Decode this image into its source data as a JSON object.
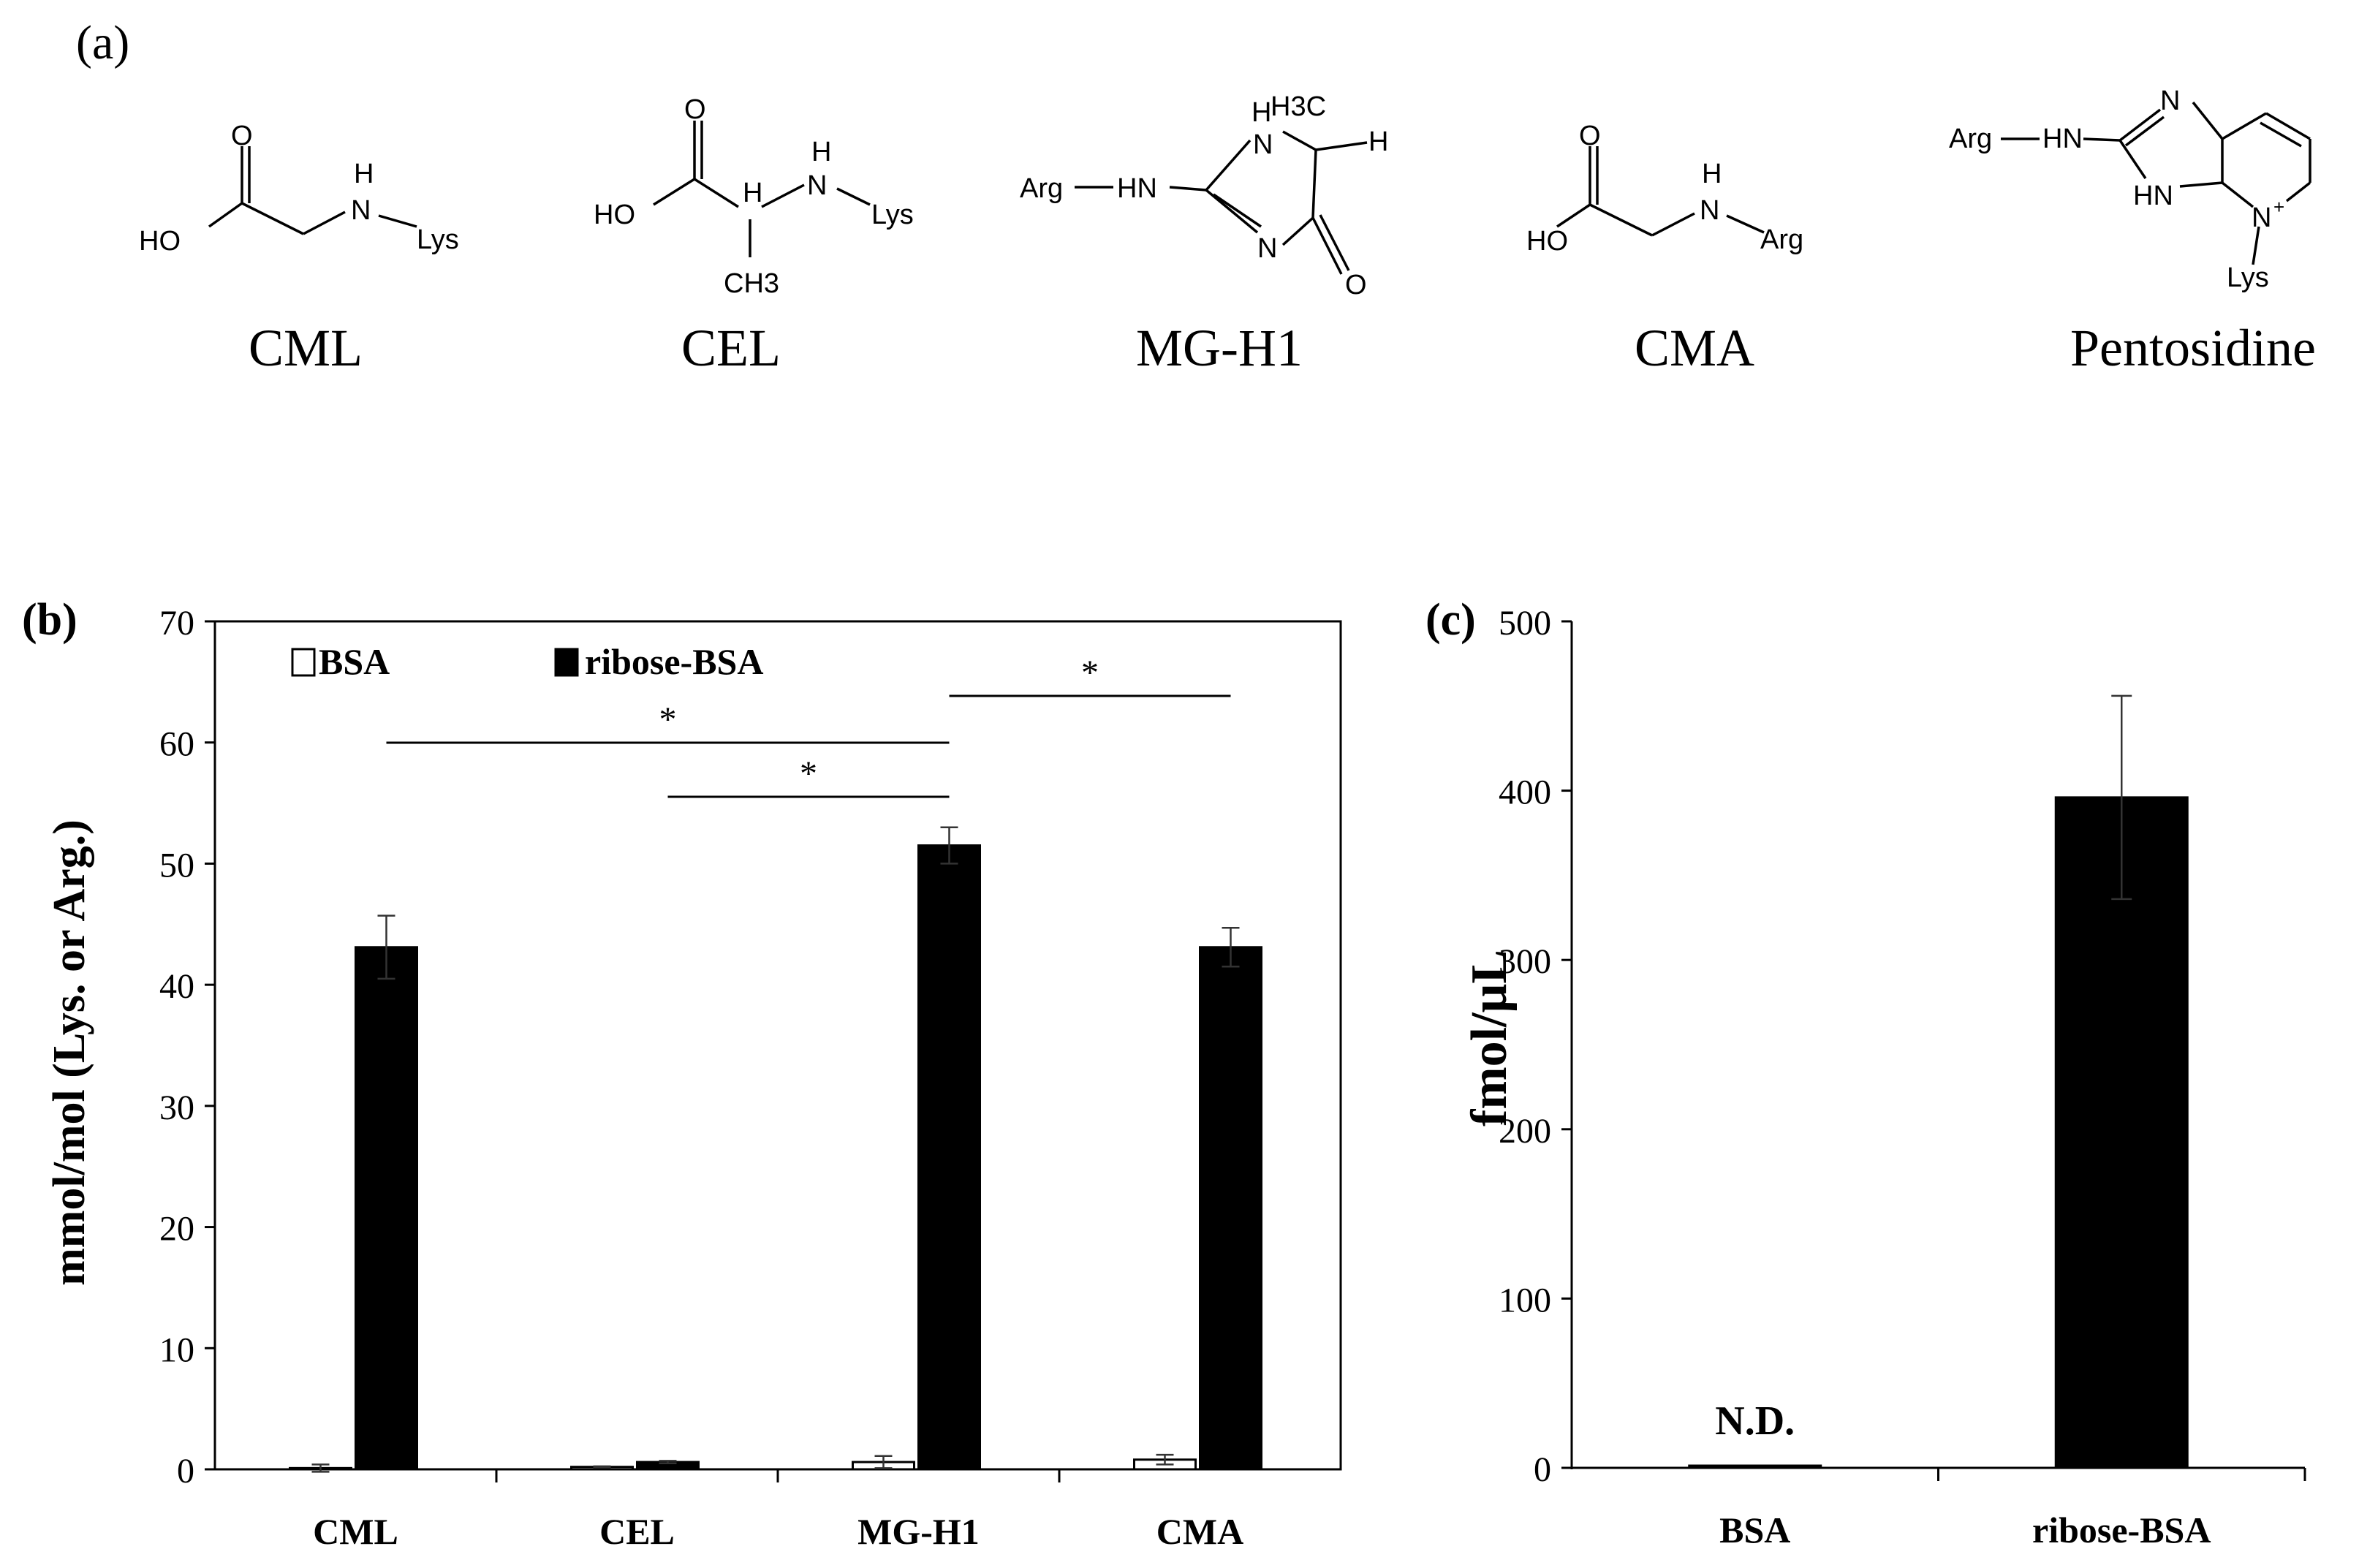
{
  "panels": {
    "a": {
      "label": "(a)"
    },
    "b": {
      "label": "(b)"
    },
    "c": {
      "label": "(c)"
    }
  },
  "structures": [
    {
      "name": "CML",
      "atoms": {
        "o": "O",
        "ho": "HO",
        "h": "H",
        "n": "N",
        "r": "Lys"
      }
    },
    {
      "name": "CEL",
      "atoms": {
        "o": "O",
        "ho": "HO",
        "h": "H",
        "hn": "H",
        "n": "N",
        "r": "Lys",
        "ch3": "CH3"
      }
    },
    {
      "name": "MG-H1",
      "atoms": {
        "arg": "Arg",
        "hn": "HN",
        "nh": "N",
        "h_top": "H",
        "h3c": "H3C",
        "h": "H",
        "n": "N",
        "o": "O"
      }
    },
    {
      "name": "CMA",
      "atoms": {
        "o": "O",
        "ho": "HO",
        "h": "H",
        "n": "N",
        "r": "Arg"
      }
    },
    {
      "name": "Pentosidine",
      "atoms": {
        "arg": "Arg",
        "hn": "HN",
        "n_top": "N",
        "hn_ring": "HN",
        "n_plus": "N",
        "plus": "+",
        "lys": "Lys"
      }
    }
  ],
  "chart_data": [
    {
      "type": "bar",
      "panel": "(b)",
      "categories": [
        "CML",
        "CEL",
        "MG-H1",
        "CMA"
      ],
      "series": [
        {
          "name": "BSA",
          "values": [
            0.1,
            0.2,
            0.6,
            0.8
          ],
          "errors": [
            0.3,
            0.05,
            0.5,
            0.4
          ],
          "color": "#ffffff"
        },
        {
          "name": "ribose-BSA",
          "values": [
            43.1,
            0.6,
            51.5,
            43.1
          ],
          "errors": [
            2.6,
            0.1,
            1.5,
            1.6
          ],
          "color": "#000000"
        }
      ],
      "ylabel": "mmol/mol (Lys. or Arg.)",
      "ylim": [
        0,
        70
      ],
      "yticks": [
        "0",
        "10",
        "20",
        "30",
        "40",
        "50",
        "60",
        "70"
      ],
      "legend_position": "top-left",
      "significance": [
        {
          "from": "CML",
          "to": "MG-H1",
          "label": "*"
        },
        {
          "from": "CEL",
          "to": "MG-H1",
          "label": "*"
        },
        {
          "from": "MG-H1",
          "to": "CMA",
          "label": "*"
        }
      ]
    },
    {
      "type": "bar",
      "panel": "(c)",
      "categories": [
        "BSA",
        "ribose-BSA"
      ],
      "values": [
        1,
        396
      ],
      "errors": [
        0,
        60
      ],
      "annotations": [
        {
          "category": "BSA",
          "text": "N.D."
        }
      ],
      "ylabel": "fmol/μL",
      "ylim": [
        0,
        500
      ],
      "yticks": [
        "0",
        "100",
        "200",
        "300",
        "400",
        "500"
      ],
      "color": "#000000"
    }
  ]
}
